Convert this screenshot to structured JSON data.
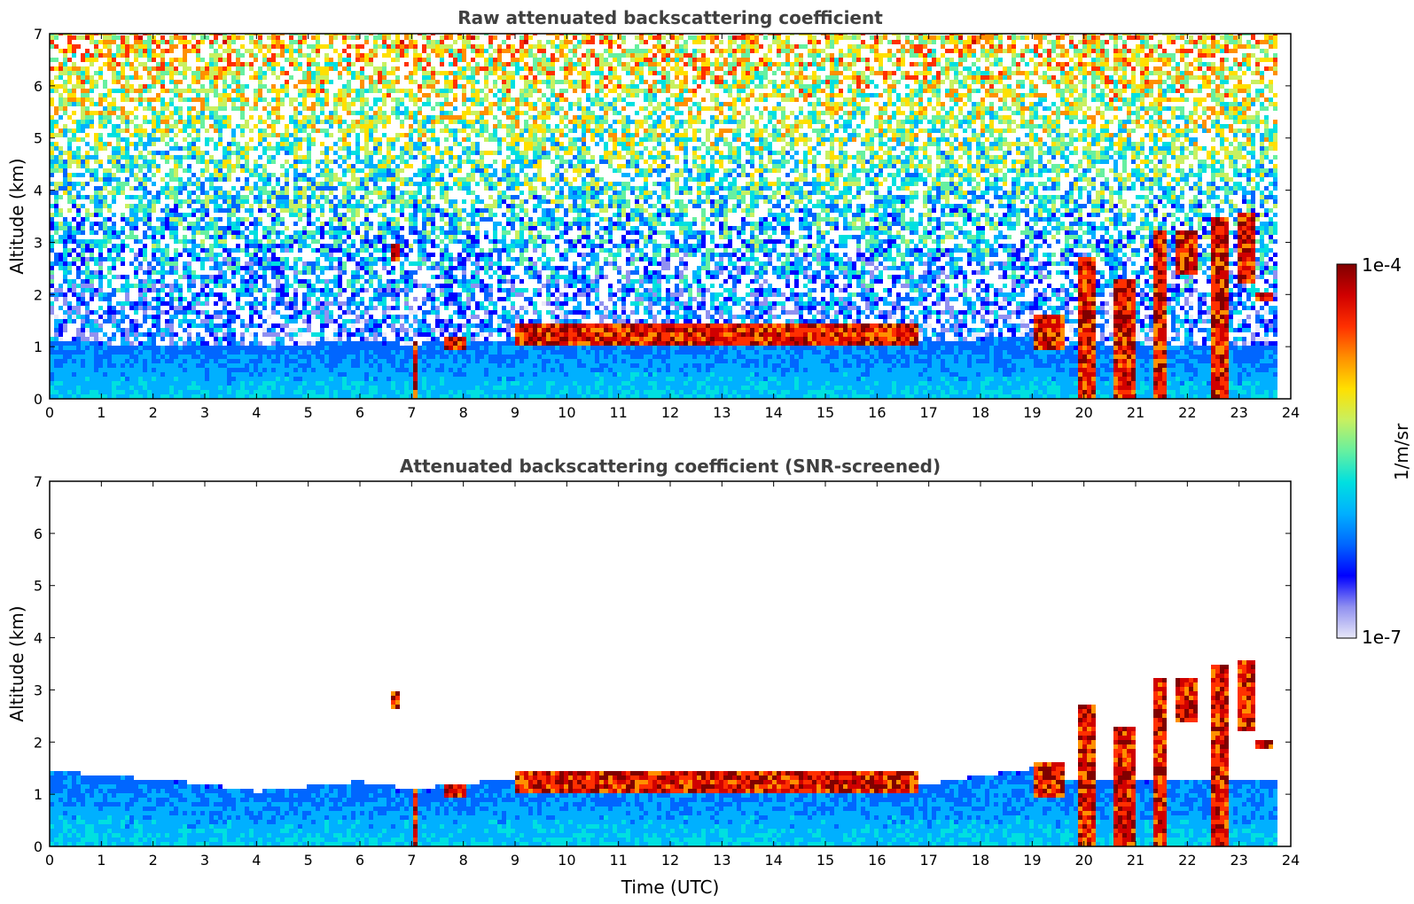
{
  "chart_data": [
    {
      "type": "heatmap",
      "title": "Raw attenuated backscattering coefficient",
      "xlabel": "",
      "ylabel": "Altitude (km)",
      "xlim": [
        0,
        24
      ],
      "ylim": [
        0,
        7
      ],
      "x_ticks": [
        0,
        1,
        2,
        3,
        4,
        5,
        6,
        7,
        8,
        9,
        10,
        11,
        12,
        13,
        14,
        15,
        16,
        17,
        18,
        19,
        20,
        21,
        22,
        23,
        24
      ],
      "y_ticks": [
        0,
        1,
        2,
        3,
        4,
        5,
        6,
        7
      ],
      "screened": false,
      "data_end_time": 23.8,
      "boundary_layer_top_km": {
        "t": [
          0,
          3,
          4,
          6,
          7,
          9,
          12,
          15,
          17,
          19,
          19.5,
          24
        ],
        "z": [
          1.1,
          1.0,
          1.0,
          1.1,
          1.05,
          1.15,
          1.2,
          1.2,
          1.1,
          1.2,
          1.0,
          1.0
        ]
      },
      "cloud_features": [
        {
          "t0": 7.0,
          "t1": 7.15,
          "z0": 0.0,
          "z1": 1.1,
          "kind": "precipitation"
        },
        {
          "t0": 6.6,
          "t1": 6.75,
          "z0": 2.6,
          "z1": 3.0,
          "kind": "cloud"
        },
        {
          "t0": 7.6,
          "t1": 8.1,
          "z0": 0.9,
          "z1": 1.2,
          "kind": "cloud"
        },
        {
          "t0": 9.0,
          "t1": 16.8,
          "z0": 1.0,
          "z1": 1.45,
          "kind": "broken-cloud"
        },
        {
          "t0": 19.0,
          "t1": 19.6,
          "z0": 0.9,
          "z1": 1.6,
          "kind": "cloud"
        },
        {
          "t0": 19.9,
          "t1": 20.2,
          "z0": 0.0,
          "z1": 2.7,
          "kind": "precipitation"
        },
        {
          "t0": 20.6,
          "t1": 21.0,
          "z0": 0.0,
          "z1": 2.3,
          "kind": "precipitation"
        },
        {
          "t0": 21.3,
          "t1": 21.6,
          "z0": 0.0,
          "z1": 3.2,
          "kind": "precipitation"
        },
        {
          "t0": 21.8,
          "t1": 22.2,
          "z0": 2.4,
          "z1": 3.2,
          "kind": "cloud"
        },
        {
          "t0": 22.5,
          "t1": 22.8,
          "z0": 0.0,
          "z1": 3.5,
          "kind": "precipitation"
        },
        {
          "t0": 23.0,
          "t1": 23.3,
          "z0": 2.2,
          "z1": 3.6,
          "kind": "cloud"
        },
        {
          "t0": 23.3,
          "t1": 23.7,
          "z0": 1.9,
          "z1": 2.05,
          "kind": "cloud"
        }
      ]
    },
    {
      "type": "heatmap",
      "title": "Attenuated backscattering coefficient (SNR-screened)",
      "xlabel": "Time (UTC)",
      "ylabel": "Altitude (km)",
      "xlim": [
        0,
        24
      ],
      "ylim": [
        0,
        7
      ],
      "x_ticks": [
        0,
        1,
        2,
        3,
        4,
        5,
        6,
        7,
        8,
        9,
        10,
        11,
        12,
        13,
        14,
        15,
        16,
        17,
        18,
        19,
        20,
        21,
        22,
        23,
        24
      ],
      "y_ticks": [
        0,
        1,
        2,
        3,
        4,
        5,
        6,
        7
      ],
      "screened": true,
      "data_end_time": 23.8,
      "boundary_layer_top_km": {
        "t": [
          0,
          3,
          4,
          6,
          7,
          9,
          12,
          15,
          17,
          19,
          19.5,
          24
        ],
        "z": [
          1.45,
          1.2,
          1.05,
          1.25,
          1.1,
          1.3,
          1.3,
          1.3,
          1.2,
          1.5,
          1.3,
          1.3
        ]
      }
    }
  ],
  "colorbar": {
    "label": "1/m/sr",
    "max_label": "1e-4",
    "min_label": "1e-7",
    "colormap": [
      "#e8e8f8",
      "#9090f0",
      "#0000ff",
      "#0066ff",
      "#00b0ff",
      "#00e0e0",
      "#66f0a0",
      "#c8f060",
      "#ffe000",
      "#ff9000",
      "#ff3000",
      "#d00000",
      "#800000"
    ]
  }
}
